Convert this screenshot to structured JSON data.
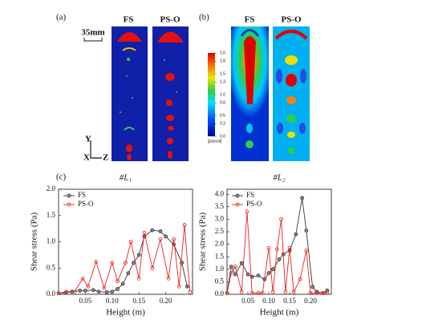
{
  "figure": {
    "panel_a": "(a)",
    "panel_b": "(b)",
    "panel_c": "(c)",
    "columns": [
      "FS",
      "PS-O"
    ],
    "scale_bar": "35mm",
    "axes": [
      "Y",
      "X",
      "Z"
    ],
    "colorbar": {
      "unit": "[pascal]",
      "clim": [
        0,
        2
      ],
      "ticks": [
        {
          "value": 2,
          "label": "2.0"
        },
        1.8,
        1.5,
        1.3,
        {
          "value": 1,
          "label": "1.0"
        },
        0.8,
        0.5,
        0.3,
        {
          "value": 0,
          "label": "0.0"
        }
      ]
    }
  },
  "chart_data": [
    {
      "type": "line",
      "title": "#L₁",
      "x_label": "Height (m)",
      "y_label": "Shear stress (Pa)",
      "legend": "upper left",
      "xlim": [
        0,
        0.25
      ],
      "ylim": [
        0,
        2
      ],
      "xticks": [
        0.05,
        {
          "value": 0.1,
          "label": "0.10"
        },
        0.15,
        {
          "value": 0.2,
          "label": "0.20"
        }
      ],
      "yticks": [
        {
          "value": 0,
          "label": "0.0"
        },
        0.5,
        {
          "value": 1,
          "label": "1.0"
        },
        1.5,
        {
          "value": 2,
          "label": "2.0"
        }
      ],
      "series": [
        {
          "name": "FS",
          "color": "#333333",
          "x": [
            0,
            0.013,
            0.025,
            0.04,
            0.05,
            0.065,
            0.075,
            0.09,
            0.1,
            0.11,
            0.12,
            0.13,
            0.14,
            0.15,
            0.16,
            0.175,
            0.19,
            0.2,
            0.215,
            0.23,
            0.24
          ],
          "values": [
            0.02,
            0.03,
            0.05,
            0.07,
            0.07,
            0.08,
            0.05,
            0.04,
            0.05,
            0.1,
            0.2,
            0.4,
            0.6,
            0.75,
            1.1,
            1.22,
            1.2,
            1.1,
            0.95,
            0.6,
            0.15
          ]
        },
        {
          "name": "PS-O",
          "color": "#e8231f",
          "x": [
            0,
            0.015,
            0.03,
            0.045,
            0.055,
            0.07,
            0.085,
            0.1,
            0.11,
            0.125,
            0.135,
            0.15,
            0.16,
            0.175,
            0.19,
            0.205,
            0.215,
            0.225,
            0.235,
            0.245
          ],
          "values": [
            0.02,
            0.05,
            0.05,
            0.3,
            0.15,
            0.62,
            0.12,
            0.6,
            0.25,
            0.6,
            1.0,
            0.3,
            1.17,
            0.5,
            1.05,
            0.3,
            1.05,
            0.15,
            1.32,
            0.05
          ]
        }
      ]
    },
    {
      "type": "line",
      "title": "#L₂",
      "x_label": "Height (m)",
      "y_label": "Shear stress (Pa)",
      "legend": "upper left",
      "xlim": [
        0,
        0.25
      ],
      "ylim": [
        0,
        4.2
      ],
      "xticks": [
        0.05,
        {
          "value": 0.1,
          "label": "0.10"
        },
        0.15,
        {
          "value": 0.2,
          "label": "0.20"
        }
      ],
      "yticks": [
        {
          "value": 0,
          "label": "0.0"
        },
        0.5,
        {
          "value": 1,
          "label": "1.0"
        },
        1.5,
        {
          "value": 2,
          "label": "2.0"
        },
        2.5,
        {
          "value": 3,
          "label": "3.0"
        },
        3.5,
        {
          "value": 4,
          "label": "4.0"
        }
      ],
      "series": [
        {
          "name": "FS",
          "color": "#333333",
          "x": [
            0,
            0.01,
            0.02,
            0.035,
            0.05,
            0.06,
            0.075,
            0.09,
            0.1,
            0.11,
            0.125,
            0.135,
            0.15,
            0.165,
            0.18,
            0.19,
            0.205,
            0.215,
            0.23,
            0.24
          ],
          "values": [
            0.05,
            1.1,
            0.8,
            1.25,
            0.8,
            0.7,
            0.75,
            0.6,
            0.85,
            1.0,
            1.4,
            1.6,
            1.75,
            2.4,
            3.85,
            2.55,
            0.3,
            0.1,
            0.05,
            0.15
          ]
        },
        {
          "name": "PS-O",
          "color": "#e8231f",
          "x": [
            0,
            0.01,
            0.02,
            0.035,
            0.048,
            0.06,
            0.075,
            0.085,
            0.1,
            0.11,
            0.12,
            0.13,
            0.14,
            0.15,
            0.16,
            0.175,
            0.19,
            0.2,
            0.215,
            0.23,
            0.24
          ],
          "values": [
            0.05,
            0.85,
            1.1,
            0.1,
            3.3,
            0.05,
            0.05,
            0.05,
            1.85,
            0.1,
            1.8,
            3.0,
            0.1,
            1.85,
            0.1,
            0.6,
            1.75,
            0.05,
            0.05,
            0.05,
            0.05
          ]
        }
      ]
    }
  ]
}
